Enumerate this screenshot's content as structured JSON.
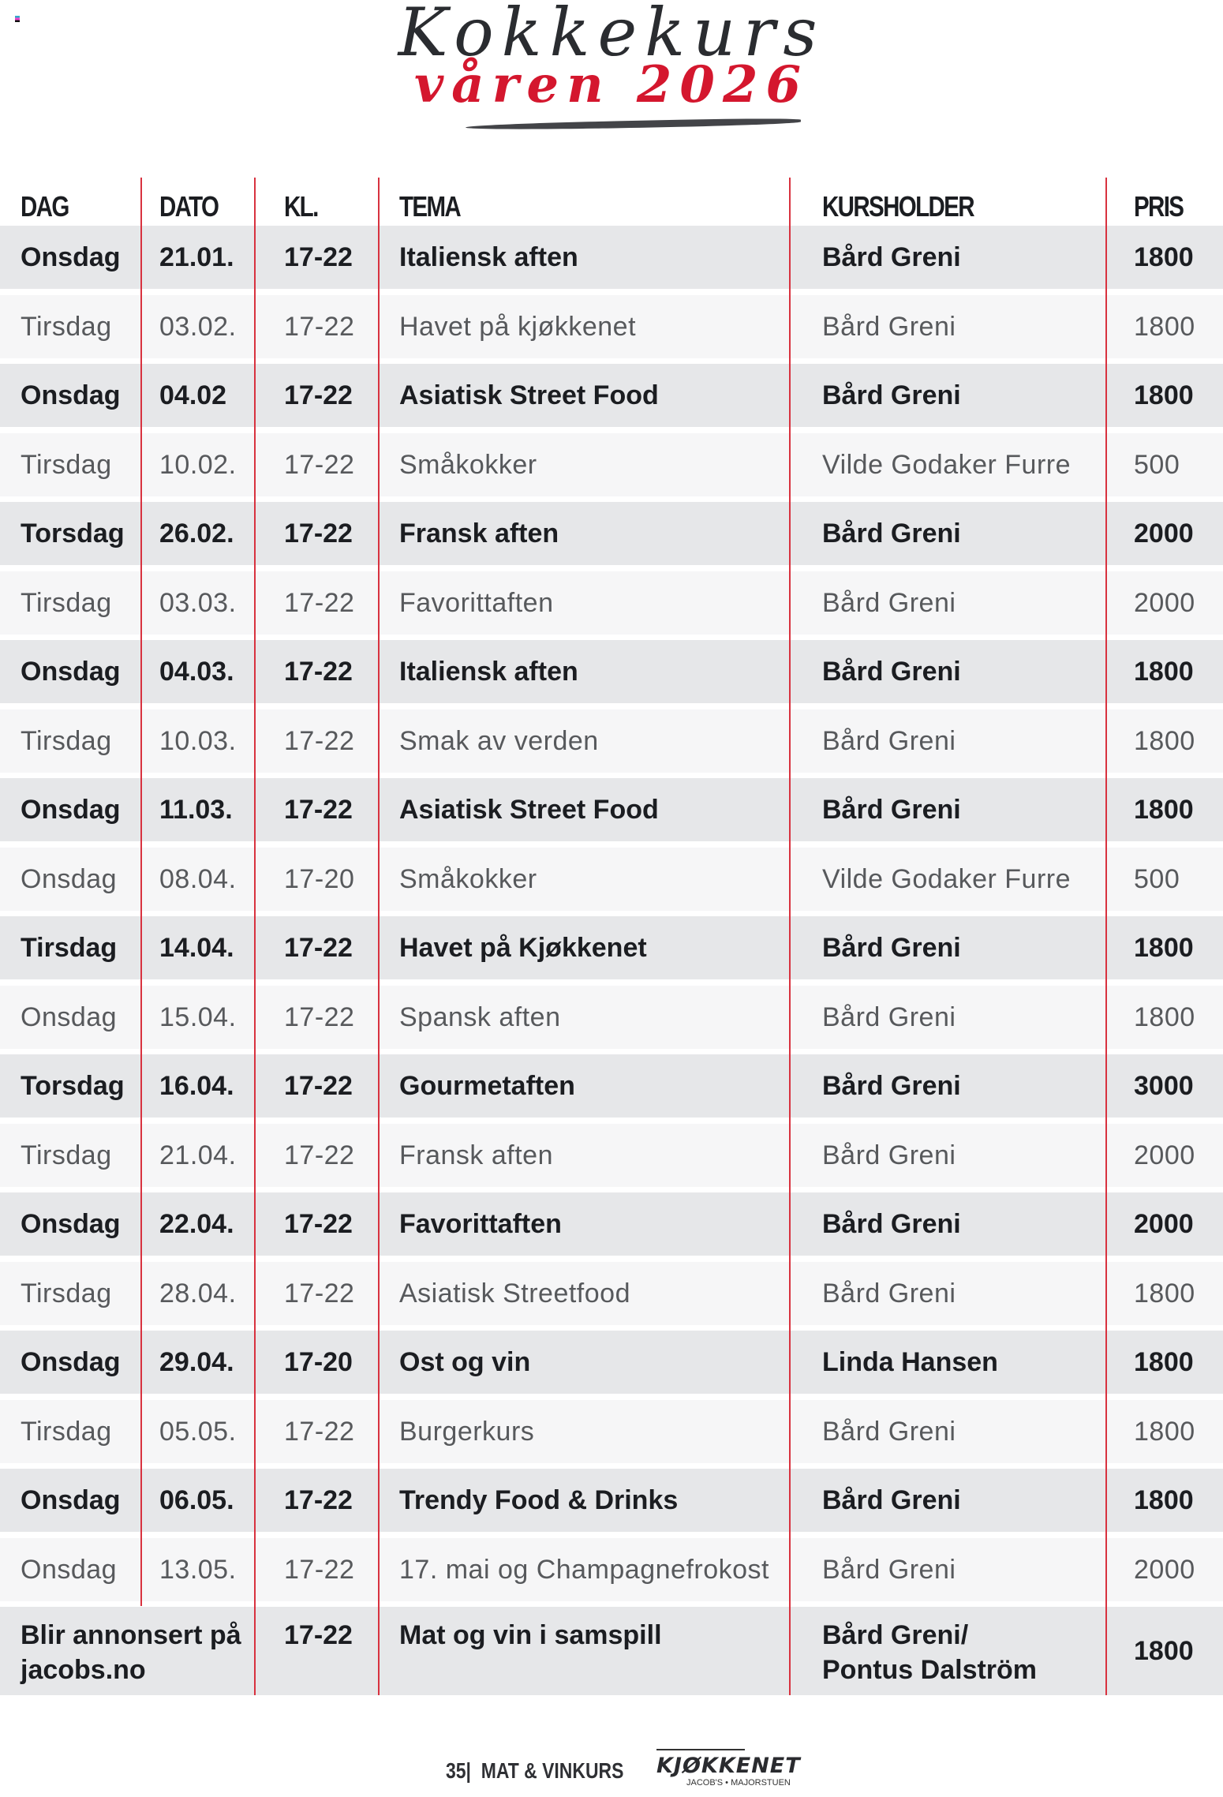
{
  "header": {
    "title": "Kokkekurs",
    "subtitle": "våren 2026"
  },
  "colors": {
    "accent": "#d4172e",
    "row_bold_bg": "#e6e7e9",
    "row_light_bg": "#f6f6f7"
  },
  "columns": [
    "DAG",
    "DATO",
    "KL.",
    "TEMA",
    "KURSHOLDER",
    "PRIS"
  ],
  "rows": [
    {
      "style": "bold",
      "dag": "Onsdag",
      "dato": "21.01.",
      "kl": "17-22",
      "tema": "Italiensk aften",
      "kursholder": "Bård Greni",
      "pris": "1800"
    },
    {
      "style": "light",
      "dag": "Tirsdag",
      "dato": "03.02.",
      "kl": "17-22",
      "tema": "Havet på kjøkkenet",
      "kursholder": "Bård Greni",
      "pris": "1800"
    },
    {
      "style": "bold",
      "dag": "Onsdag",
      "dato": "04.02",
      "kl": "17-22",
      "tema": "Asiatisk Street Food",
      "kursholder": "Bård Greni",
      "pris": "1800"
    },
    {
      "style": "light",
      "dag": "Tirsdag",
      "dato": "10.02.",
      "kl": "17-22",
      "tema": "Småkokker",
      "kursholder": "Vilde Godaker Furre",
      "pris": "500"
    },
    {
      "style": "bold",
      "dag": "Torsdag",
      "dato": "26.02.",
      "kl": "17-22",
      "tema": "Fransk aften",
      "kursholder": "Bård Greni",
      "pris": "2000"
    },
    {
      "style": "light",
      "dag": "Tirsdag",
      "dato": "03.03.",
      "kl": "17-22",
      "tema": "Favorittaften",
      "kursholder": "Bård Greni",
      "pris": "2000"
    },
    {
      "style": "bold",
      "dag": "Onsdag",
      "dato": "04.03.",
      "kl": "17-22",
      "tema": "Italiensk aften",
      "kursholder": "Bård Greni",
      "pris": "1800"
    },
    {
      "style": "light",
      "dag": "Tirsdag",
      "dato": "10.03.",
      "kl": "17-22",
      "tema": "Smak av verden",
      "kursholder": "Bård Greni",
      "pris": "1800"
    },
    {
      "style": "bold",
      "dag": "Onsdag",
      "dato": "11.03.",
      "kl": "17-22",
      "tema": "Asiatisk Street Food",
      "kursholder": "Bård Greni",
      "pris": "1800"
    },
    {
      "style": "light",
      "dag": "Onsdag",
      "dato": "08.04.",
      "kl": "17-20",
      "tema": "Småkokker",
      "kursholder": "Vilde Godaker Furre",
      "pris": "500"
    },
    {
      "style": "bold",
      "dag": "Tirsdag",
      "dato": "14.04.",
      "kl": "17-22",
      "tema": "Havet på Kjøkkenet",
      "kursholder": "Bård Greni",
      "pris": "1800"
    },
    {
      "style": "light",
      "dag": "Onsdag",
      "dato": "15.04.",
      "kl": "17-22",
      "tema": "Spansk aften",
      "kursholder": "Bård Greni",
      "pris": "1800"
    },
    {
      "style": "bold",
      "dag": "Torsdag",
      "dato": "16.04.",
      "kl": "17-22",
      "tema": "Gourmetaften",
      "kursholder": "Bård Greni",
      "pris": "3000"
    },
    {
      "style": "light",
      "dag": "Tirsdag",
      "dato": "21.04.",
      "kl": "17-22",
      "tema": "Fransk aften",
      "kursholder": "Bård Greni",
      "pris": "2000"
    },
    {
      "style": "bold",
      "dag": "Onsdag",
      "dato": "22.04.",
      "kl": "17-22",
      "tema": "Favorittaften",
      "kursholder": "Bård Greni",
      "pris": "2000"
    },
    {
      "style": "light",
      "dag": "Tirsdag",
      "dato": "28.04.",
      "kl": "17-22",
      "tema": "Asiatisk Streetfood",
      "kursholder": "Bård Greni",
      "pris": "1800"
    },
    {
      "style": "bold",
      "dag": "Onsdag",
      "dato": "29.04.",
      "kl": "17-20",
      "tema": "Ost og vin",
      "kursholder": "Linda Hansen",
      "pris": "1800"
    },
    {
      "style": "light",
      "dag": "Tirsdag",
      "dato": "05.05.",
      "kl": "17-22",
      "tema": "Burgerkurs",
      "kursholder": "Bård Greni",
      "pris": "1800"
    },
    {
      "style": "bold",
      "dag": "Onsdag",
      "dato": "06.05.",
      "kl": "17-22",
      "tema": "Trendy Food & Drinks",
      "kursholder": "Bård Greni",
      "pris": "1800"
    },
    {
      "style": "light",
      "dag": "Onsdag",
      "dato": "13.05.",
      "kl": "17-22",
      "tema": "17. mai og Champagnefrokost",
      "kursholder": "Bård Greni",
      "pris": "2000"
    }
  ],
  "last_row": {
    "dag_line1": "Blir annonsert på",
    "dag_line2": "jacobs.no",
    "kl": "17-22",
    "tema": "Mat og vin i samspill",
    "kursholder_line1": "Bård Greni/",
    "kursholder_line2": "Pontus Dalström",
    "pris": "1800"
  },
  "footer": {
    "page": "35|",
    "section": "MAT & VINKURS",
    "logo_name": "KJØKKENET",
    "logo_sub": "JACOB'S • MAJORSTUEN"
  }
}
